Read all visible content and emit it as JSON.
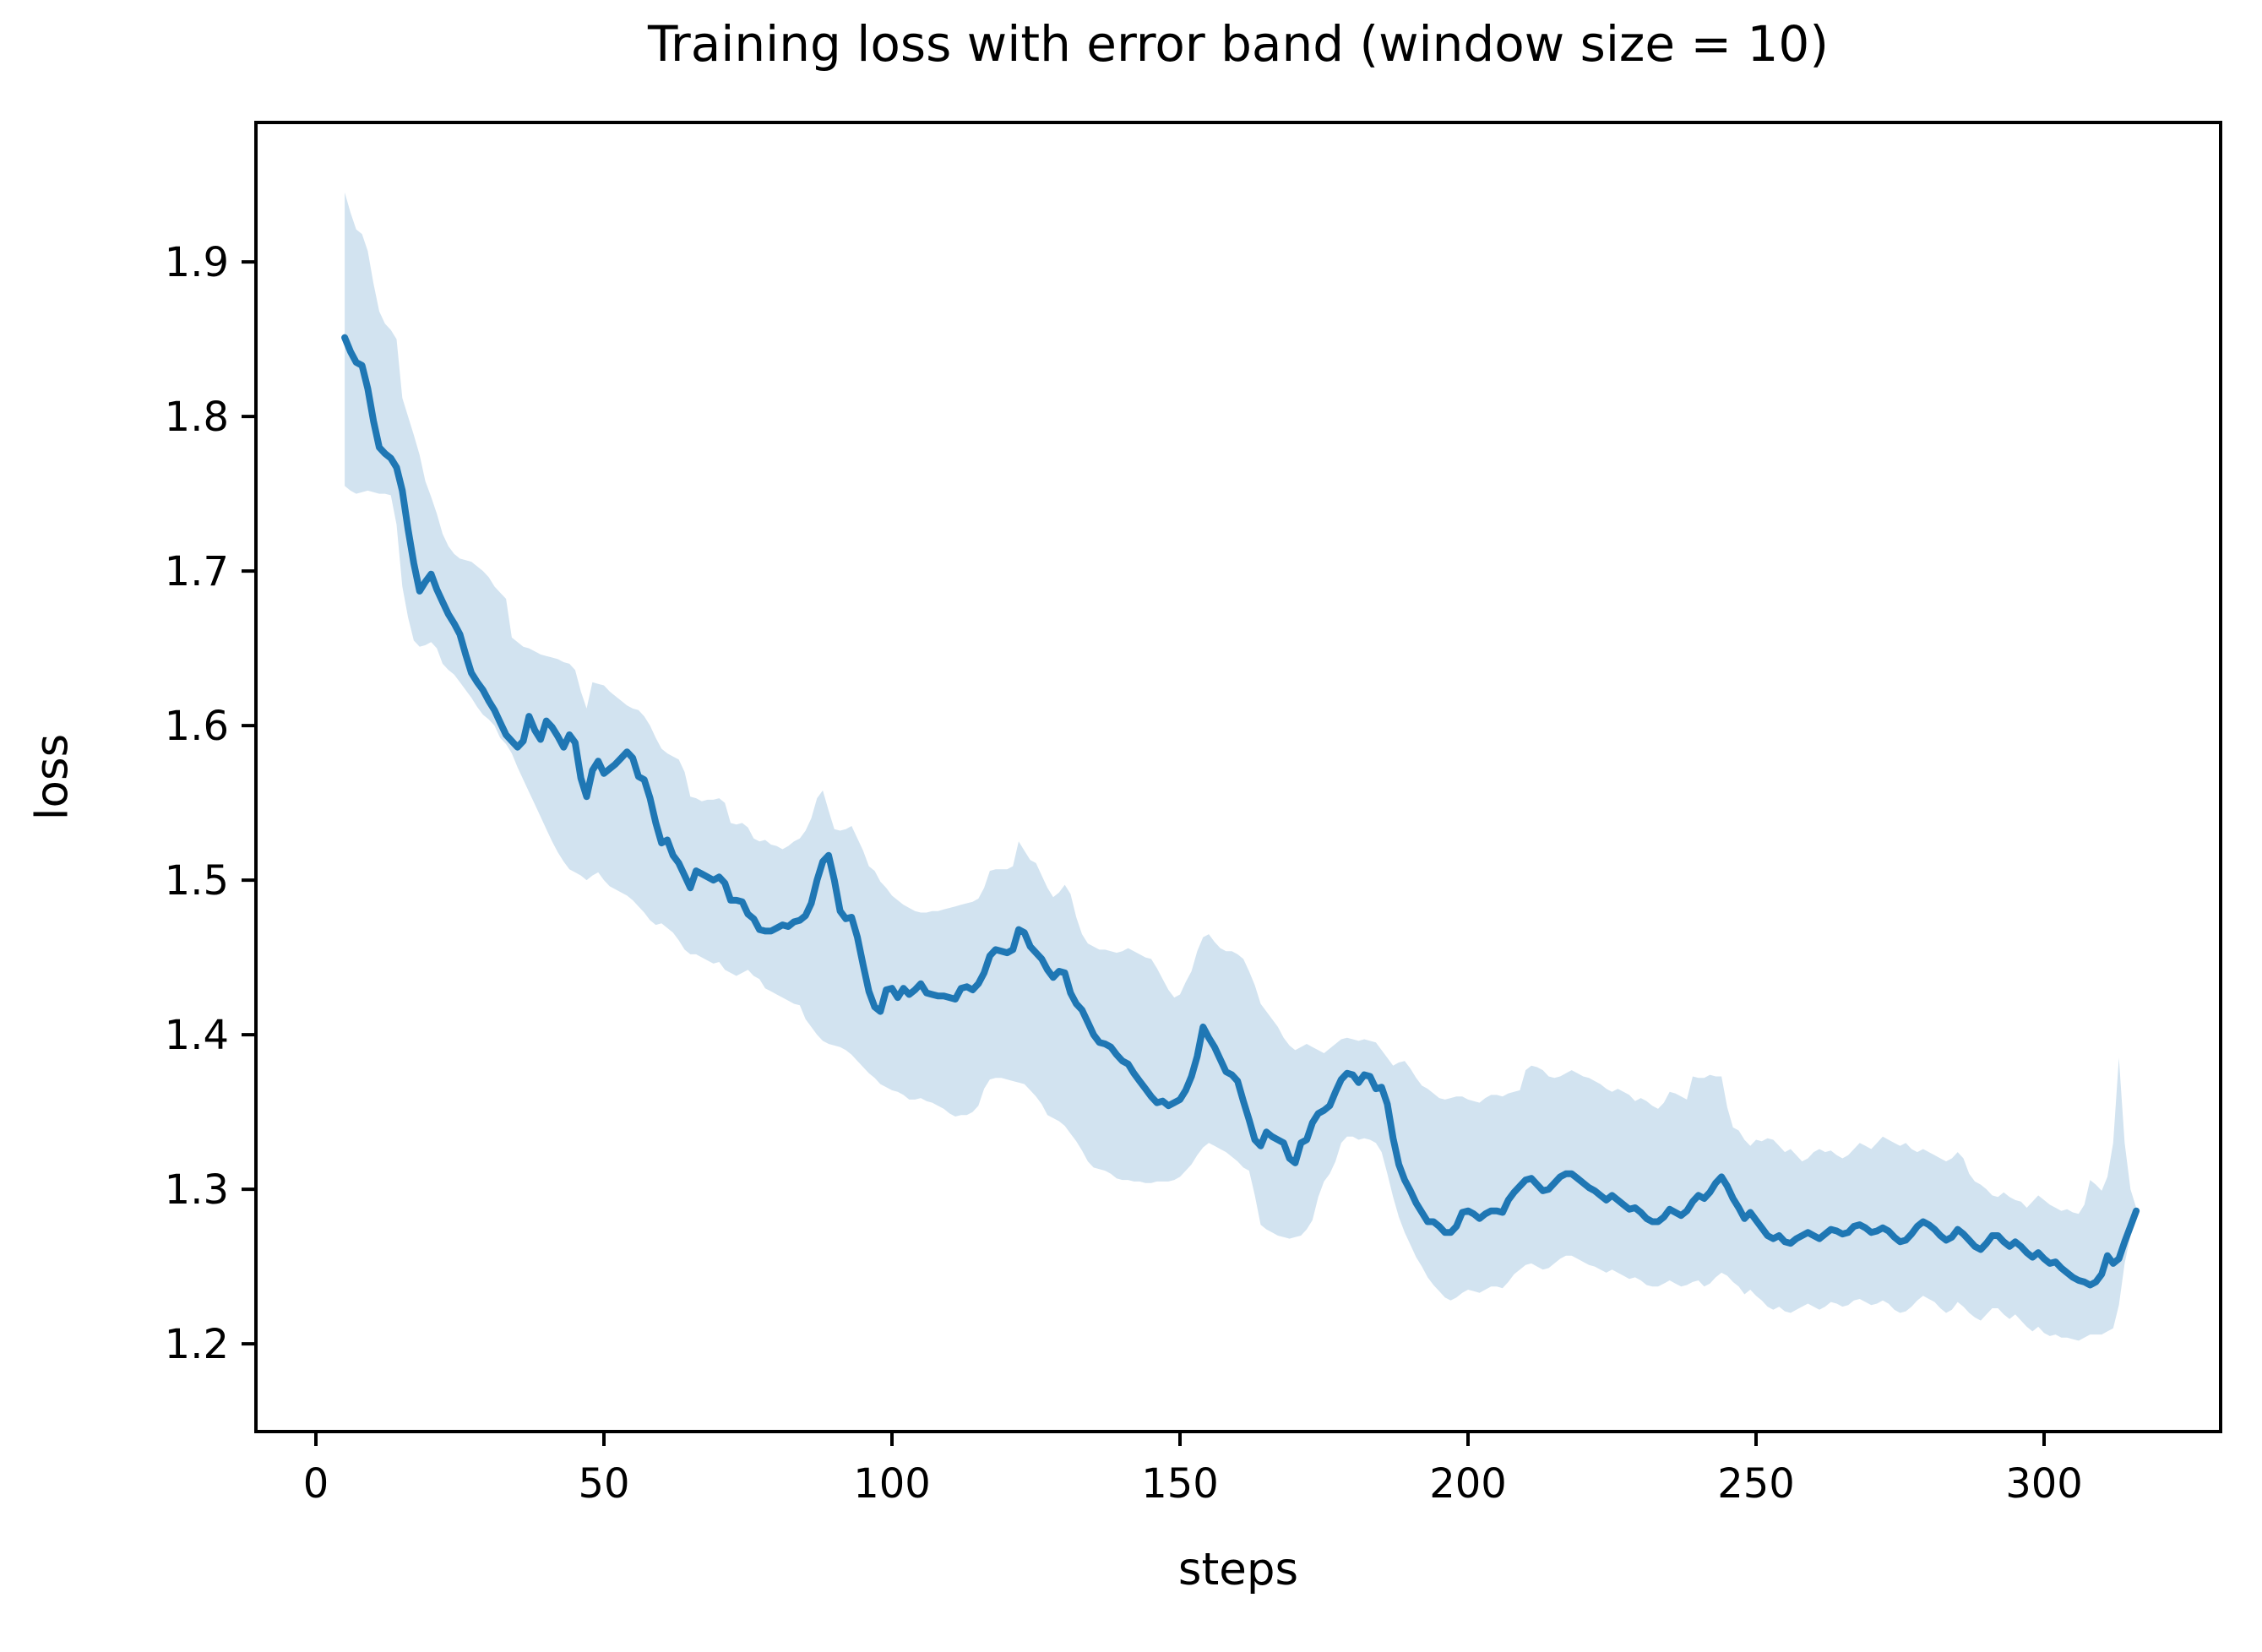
{
  "chart_data": {
    "type": "line",
    "title": "Training loss with error band (window size = 10)",
    "xlabel": "steps",
    "ylabel": "loss",
    "legend": "none",
    "grid": false,
    "line_color": "#1f77b4",
    "band_color": "#d2e3f0",
    "axis_color": "#000000",
    "xlim": [
      -10.41,
      330.65
    ],
    "ylim": [
      1.1432,
      1.9902
    ],
    "xticks": [
      0,
      50,
      100,
      150,
      200,
      250,
      300
    ],
    "yticks": [
      1.2,
      1.3,
      1.4,
      1.5,
      1.6,
      1.7,
      1.8,
      1.9
    ],
    "steps_start": 5,
    "steps_increment": 1,
    "mean": [
      1.851,
      1.842,
      1.835,
      1.833,
      1.818,
      1.797,
      1.78,
      1.776,
      1.773,
      1.767,
      1.752,
      1.727,
      1.705,
      1.687,
      1.693,
      1.698,
      1.688,
      1.68,
      1.672,
      1.666,
      1.659,
      1.646,
      1.634,
      1.628,
      1.623,
      1.616,
      1.61,
      1.602,
      1.594,
      1.59,
      1.586,
      1.59,
      1.606,
      1.597,
      1.591,
      1.603,
      1.599,
      1.593,
      1.586,
      1.594,
      1.589,
      1.566,
      1.554,
      1.571,
      1.577,
      1.569,
      1.572,
      1.575,
      1.579,
      1.583,
      1.579,
      1.567,
      1.565,
      1.553,
      1.537,
      1.524,
      1.526,
      1.516,
      1.511,
      1.503,
      1.495,
      1.506,
      1.504,
      1.502,
      1.5,
      1.502,
      1.498,
      1.487,
      1.487,
      1.486,
      1.478,
      1.475,
      1.468,
      1.467,
      1.467,
      1.469,
      1.471,
      1.47,
      1.473,
      1.474,
      1.477,
      1.485,
      1.5,
      1.512,
      1.516,
      1.5,
      1.48,
      1.475,
      1.476,
      1.463,
      1.445,
      1.428,
      1.418,
      1.415,
      1.429,
      1.43,
      1.424,
      1.43,
      1.426,
      1.429,
      1.433,
      1.427,
      1.426,
      1.425,
      1.425,
      1.424,
      1.423,
      1.43,
      1.431,
      1.429,
      1.433,
      1.44,
      1.451,
      1.455,
      1.454,
      1.453,
      1.455,
      1.468,
      1.466,
      1.457,
      1.453,
      1.449,
      1.442,
      1.437,
      1.441,
      1.44,
      1.427,
      1.42,
      1.416,
      1.408,
      1.4,
      1.395,
      1.394,
      1.392,
      1.387,
      1.383,
      1.381,
      1.375,
      1.37,
      1.365,
      1.36,
      1.356,
      1.357,
      1.354,
      1.356,
      1.358,
      1.364,
      1.373,
      1.386,
      1.405,
      1.398,
      1.392,
      1.384,
      1.376,
      1.374,
      1.37,
      1.357,
      1.345,
      1.332,
      1.328,
      1.337,
      1.334,
      1.332,
      1.33,
      1.32,
      1.317,
      1.33,
      1.332,
      1.343,
      1.349,
      1.351,
      1.354,
      1.363,
      1.371,
      1.375,
      1.374,
      1.369,
      1.374,
      1.373,
      1.365,
      1.366,
      1.355,
      1.333,
      1.316,
      1.306,
      1.299,
      1.291,
      1.285,
      1.279,
      1.279,
      1.276,
      1.272,
      1.272,
      1.276,
      1.285,
      1.286,
      1.284,
      1.281,
      1.284,
      1.286,
      1.286,
      1.285,
      1.293,
      1.298,
      1.302,
      1.306,
      1.307,
      1.303,
      1.299,
      1.3,
      1.304,
      1.308,
      1.31,
      1.31,
      1.307,
      1.304,
      1.301,
      1.299,
      1.296,
      1.293,
      1.296,
      1.293,
      1.29,
      1.287,
      1.288,
      1.285,
      1.281,
      1.279,
      1.279,
      1.282,
      1.287,
      1.285,
      1.283,
      1.286,
      1.292,
      1.296,
      1.294,
      1.298,
      1.304,
      1.308,
      1.302,
      1.294,
      1.288,
      1.281,
      1.285,
      1.28,
      1.275,
      1.27,
      1.268,
      1.27,
      1.266,
      1.265,
      1.268,
      1.27,
      1.272,
      1.27,
      1.268,
      1.271,
      1.274,
      1.273,
      1.271,
      1.272,
      1.276,
      1.277,
      1.275,
      1.272,
      1.273,
      1.275,
      1.273,
      1.269,
      1.266,
      1.267,
      1.271,
      1.276,
      1.279,
      1.277,
      1.274,
      1.27,
      1.267,
      1.269,
      1.274,
      1.271,
      1.267,
      1.263,
      1.261,
      1.265,
      1.27,
      1.27,
      1.266,
      1.263,
      1.266,
      1.263,
      1.259,
      1.256,
      1.259,
      1.255,
      1.252,
      1.253,
      1.249,
      1.246,
      1.243,
      1.241,
      1.24,
      1.238,
      1.24,
      1.245,
      1.257,
      1.252,
      1.255,
      1.266,
      1.276,
      1.286
    ],
    "upper": [
      1.945,
      1.932,
      1.921,
      1.918,
      1.907,
      1.886,
      1.868,
      1.86,
      1.856,
      1.85,
      1.812,
      1.8,
      1.788,
      1.775,
      1.758,
      1.748,
      1.737,
      1.724,
      1.716,
      1.711,
      1.708,
      1.707,
      1.706,
      1.703,
      1.7,
      1.696,
      1.69,
      1.686,
      1.682,
      1.657,
      1.654,
      1.651,
      1.65,
      1.648,
      1.646,
      1.645,
      1.644,
      1.643,
      1.641,
      1.64,
      1.636,
      1.622,
      1.611,
      1.628,
      1.627,
      1.626,
      1.622,
      1.619,
      1.616,
      1.613,
      1.611,
      1.61,
      1.606,
      1.6,
      1.592,
      1.585,
      1.582,
      1.58,
      1.578,
      1.57,
      1.554,
      1.553,
      1.551,
      1.552,
      1.552,
      1.553,
      1.55,
      1.537,
      1.536,
      1.537,
      1.534,
      1.527,
      1.525,
      1.526,
      1.523,
      1.522,
      1.52,
      1.522,
      1.525,
      1.527,
      1.532,
      1.54,
      1.553,
      1.558,
      1.545,
      1.533,
      1.532,
      1.533,
      1.535,
      1.527,
      1.519,
      1.509,
      1.506,
      1.499,
      1.495,
      1.49,
      1.487,
      1.484,
      1.482,
      1.48,
      1.479,
      1.479,
      1.48,
      1.48,
      1.481,
      1.482,
      1.483,
      1.484,
      1.485,
      1.486,
      1.488,
      1.495,
      1.506,
      1.507,
      1.507,
      1.507,
      1.509,
      1.525,
      1.519,
      1.513,
      1.511,
      1.503,
      1.495,
      1.489,
      1.492,
      1.497,
      1.491,
      1.476,
      1.465,
      1.459,
      1.457,
      1.455,
      1.455,
      1.454,
      1.453,
      1.454,
      1.456,
      1.454,
      1.452,
      1.45,
      1.449,
      1.443,
      1.436,
      1.429,
      1.424,
      1.426,
      1.434,
      1.441,
      1.454,
      1.463,
      1.465,
      1.46,
      1.456,
      1.454,
      1.454,
      1.452,
      1.449,
      1.441,
      1.432,
      1.42,
      1.415,
      1.41,
      1.405,
      1.398,
      1.393,
      1.39,
      1.392,
      1.394,
      1.392,
      1.39,
      1.388,
      1.391,
      1.394,
      1.397,
      1.398,
      1.397,
      1.396,
      1.397,
      1.396,
      1.395,
      1.39,
      1.385,
      1.38,
      1.382,
      1.383,
      1.378,
      1.372,
      1.367,
      1.365,
      1.362,
      1.359,
      1.358,
      1.359,
      1.36,
      1.36,
      1.358,
      1.357,
      1.356,
      1.359,
      1.361,
      1.361,
      1.36,
      1.362,
      1.363,
      1.364,
      1.377,
      1.38,
      1.379,
      1.377,
      1.373,
      1.372,
      1.373,
      1.375,
      1.377,
      1.375,
      1.373,
      1.372,
      1.37,
      1.368,
      1.365,
      1.363,
      1.365,
      1.363,
      1.361,
      1.357,
      1.359,
      1.357,
      1.354,
      1.352,
      1.356,
      1.363,
      1.362,
      1.36,
      1.358,
      1.373,
      1.372,
      1.372,
      1.374,
      1.373,
      1.373,
      1.353,
      1.34,
      1.338,
      1.332,
      1.328,
      1.332,
      1.331,
      1.333,
      1.332,
      1.328,
      1.324,
      1.326,
      1.322,
      1.318,
      1.32,
      1.324,
      1.326,
      1.324,
      1.325,
      1.322,
      1.32,
      1.322,
      1.326,
      1.33,
      1.328,
      1.326,
      1.33,
      1.334,
      1.332,
      1.33,
      1.328,
      1.33,
      1.326,
      1.324,
      1.326,
      1.324,
      1.322,
      1.32,
      1.318,
      1.32,
      1.324,
      1.32,
      1.31,
      1.305,
      1.303,
      1.3,
      1.296,
      1.295,
      1.298,
      1.295,
      1.293,
      1.292,
      1.288,
      1.292,
      1.296,
      1.293,
      1.29,
      1.288,
      1.286,
      1.287,
      1.285,
      1.284,
      1.29,
      1.306,
      1.303,
      1.299,
      1.308,
      1.33,
      1.385,
      1.33,
      1.3,
      1.288
    ],
    "lower": [
      1.755,
      1.752,
      1.75,
      1.751,
      1.752,
      1.751,
      1.75,
      1.75,
      1.749,
      1.73,
      1.69,
      1.67,
      1.655,
      1.651,
      1.652,
      1.654,
      1.65,
      1.64,
      1.636,
      1.633,
      1.628,
      1.623,
      1.618,
      1.612,
      1.607,
      1.604,
      1.6,
      1.592,
      1.588,
      1.582,
      1.573,
      1.565,
      1.557,
      1.549,
      1.541,
      1.533,
      1.525,
      1.518,
      1.512,
      1.507,
      1.505,
      1.503,
      1.5,
      1.503,
      1.505,
      1.5,
      1.496,
      1.494,
      1.492,
      1.49,
      1.487,
      1.483,
      1.479,
      1.474,
      1.471,
      1.472,
      1.469,
      1.466,
      1.461,
      1.455,
      1.452,
      1.452,
      1.45,
      1.448,
      1.446,
      1.447,
      1.442,
      1.44,
      1.438,
      1.44,
      1.442,
      1.438,
      1.436,
      1.43,
      1.428,
      1.426,
      1.424,
      1.422,
      1.42,
      1.419,
      1.41,
      1.405,
      1.4,
      1.396,
      1.394,
      1.393,
      1.392,
      1.39,
      1.387,
      1.383,
      1.379,
      1.375,
      1.372,
      1.368,
      1.366,
      1.364,
      1.363,
      1.361,
      1.358,
      1.358,
      1.359,
      1.357,
      1.356,
      1.354,
      1.352,
      1.349,
      1.347,
      1.348,
      1.348,
      1.35,
      1.354,
      1.365,
      1.371,
      1.372,
      1.372,
      1.371,
      1.37,
      1.369,
      1.368,
      1.364,
      1.36,
      1.355,
      1.348,
      1.346,
      1.344,
      1.341,
      1.336,
      1.331,
      1.325,
      1.318,
      1.314,
      1.313,
      1.312,
      1.31,
      1.307,
      1.306,
      1.306,
      1.305,
      1.305,
      1.304,
      1.304,
      1.305,
      1.305,
      1.305,
      1.306,
      1.308,
      1.312,
      1.316,
      1.322,
      1.327,
      1.33,
      1.328,
      1.326,
      1.324,
      1.321,
      1.318,
      1.314,
      1.312,
      1.296,
      1.277,
      1.274,
      1.272,
      1.27,
      1.269,
      1.268,
      1.269,
      1.27,
      1.274,
      1.28,
      1.295,
      1.305,
      1.31,
      1.318,
      1.33,
      1.334,
      1.334,
      1.332,
      1.333,
      1.332,
      1.33,
      1.324,
      1.31,
      1.295,
      1.282,
      1.272,
      1.264,
      1.256,
      1.25,
      1.243,
      1.238,
      1.234,
      1.23,
      1.228,
      1.23,
      1.233,
      1.235,
      1.234,
      1.233,
      1.235,
      1.237,
      1.237,
      1.236,
      1.24,
      1.245,
      1.248,
      1.251,
      1.252,
      1.25,
      1.248,
      1.249,
      1.252,
      1.255,
      1.257,
      1.257,
      1.255,
      1.253,
      1.251,
      1.25,
      1.248,
      1.246,
      1.248,
      1.246,
      1.244,
      1.242,
      1.243,
      1.241,
      1.238,
      1.237,
      1.237,
      1.239,
      1.241,
      1.239,
      1.237,
      1.238,
      1.24,
      1.241,
      1.237,
      1.239,
      1.243,
      1.246,
      1.244,
      1.24,
      1.237,
      1.232,
      1.235,
      1.231,
      1.228,
      1.224,
      1.222,
      1.224,
      1.221,
      1.22,
      1.222,
      1.224,
      1.226,
      1.224,
      1.222,
      1.224,
      1.227,
      1.226,
      1.224,
      1.225,
      1.228,
      1.229,
      1.227,
      1.225,
      1.226,
      1.228,
      1.226,
      1.222,
      1.22,
      1.221,
      1.224,
      1.228,
      1.231,
      1.229,
      1.227,
      1.223,
      1.22,
      1.222,
      1.227,
      1.224,
      1.22,
      1.217,
      1.215,
      1.219,
      1.223,
      1.223,
      1.219,
      1.216,
      1.219,
      1.215,
      1.211,
      1.208,
      1.211,
      1.207,
      1.205,
      1.206,
      1.204,
      1.204,
      1.203,
      1.202,
      1.204,
      1.206,
      1.206,
      1.206,
      1.208,
      1.21,
      1.225,
      1.252,
      1.27,
      1.284
    ]
  }
}
